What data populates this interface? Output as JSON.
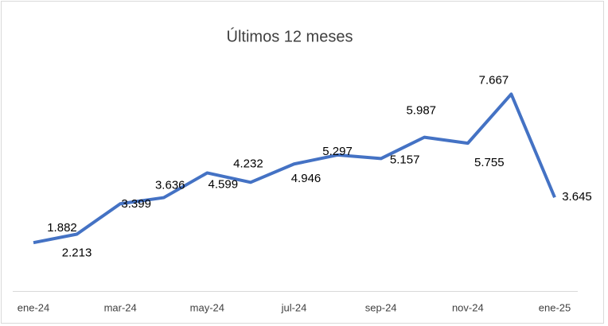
{
  "chart_data": {
    "type": "line",
    "title": "Últimos 12 meses",
    "categories": [
      "ene-24",
      null,
      "mar-24",
      null,
      "may-24",
      null,
      "jul-24",
      null,
      "sep-24",
      null,
      "nov-24",
      null,
      "ene-25"
    ],
    "series": [
      {
        "color": "#4472c4",
        "values": [
          1882,
          2213,
          3399,
          3636,
          4599,
          4232,
          4946,
          5297,
          5157,
          5987,
          5755,
          7667,
          3645
        ],
        "value_labels": [
          "1.882",
          "2.213",
          "3.399",
          "3.636",
          "4.599",
          "4.232",
          "4.946",
          "5.297",
          "5.157",
          "5.987",
          "5.755",
          "7.667",
          "3.645"
        ]
      }
    ]
  }
}
